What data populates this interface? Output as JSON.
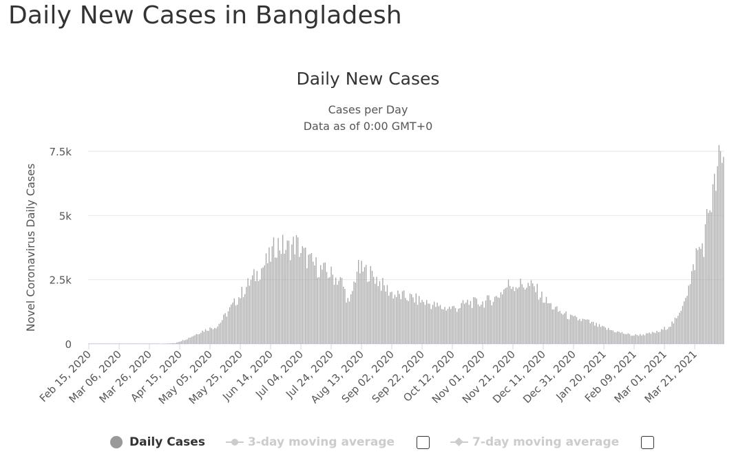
{
  "page": {
    "title": "Daily New Cases in Bangladesh"
  },
  "chart_data": {
    "type": "bar",
    "title": "Daily New Cases",
    "subtitle": "Cases per Day",
    "subtitle2": "Data as of 0:00 GMT+0",
    "ylabel": "Novel Coronavirus Daily Cases",
    "xlabel": "",
    "x_start": "2020-02-15",
    "x_end": "2021-04-09",
    "ylim": [
      0,
      7500
    ],
    "yticks": [
      {
        "value": 0,
        "label": "0"
      },
      {
        "value": 2500,
        "label": "2.5k"
      },
      {
        "value": 5000,
        "label": "5k"
      },
      {
        "value": 7500,
        "label": "7.5k"
      }
    ],
    "xticks": [
      {
        "date": "2020-02-15",
        "label": "Feb 15, 2020"
      },
      {
        "date": "2020-03-06",
        "label": "Mar 06, 2020"
      },
      {
        "date": "2020-03-26",
        "label": "Mar 26, 2020"
      },
      {
        "date": "2020-04-15",
        "label": "Apr 15, 2020"
      },
      {
        "date": "2020-05-05",
        "label": "May 05, 2020"
      },
      {
        "date": "2020-05-25",
        "label": "May 25, 2020"
      },
      {
        "date": "2020-06-14",
        "label": "Jun 14, 2020"
      },
      {
        "date": "2020-07-04",
        "label": "Jul 04, 2020"
      },
      {
        "date": "2020-07-24",
        "label": "Jul 24, 2020"
      },
      {
        "date": "2020-08-13",
        "label": "Aug 13, 2020"
      },
      {
        "date": "2020-09-02",
        "label": "Sep 02, 2020"
      },
      {
        "date": "2020-09-22",
        "label": "Sep 22, 2020"
      },
      {
        "date": "2020-10-12",
        "label": "Oct 12, 2020"
      },
      {
        "date": "2020-11-01",
        "label": "Nov 01, 2020"
      },
      {
        "date": "2020-11-21",
        "label": "Nov 21, 2020"
      },
      {
        "date": "2020-12-11",
        "label": "Dec 11, 2020"
      },
      {
        "date": "2020-12-31",
        "label": "Dec 31, 2020"
      },
      {
        "date": "2021-01-20",
        "label": "Jan 20, 2021"
      },
      {
        "date": "2021-02-09",
        "label": "Feb 09, 2021"
      },
      {
        "date": "2021-03-01",
        "label": "Mar 01, 2021"
      },
      {
        "date": "2021-03-21",
        "label": "Mar 21, 2021"
      }
    ],
    "grid": true,
    "legend_position": "bottom",
    "series": [
      {
        "name": "Daily Cases",
        "color": "#a8a8a8",
        "points": [
          {
            "date": "2020-02-15",
            "value": 0
          },
          {
            "date": "2020-04-01",
            "value": 0
          },
          {
            "date": "2020-04-12",
            "value": 30
          },
          {
            "date": "2020-04-20",
            "value": 200
          },
          {
            "date": "2020-04-30",
            "value": 500
          },
          {
            "date": "2020-05-10",
            "value": 700
          },
          {
            "date": "2020-05-20",
            "value": 1500
          },
          {
            "date": "2020-05-30",
            "value": 2300
          },
          {
            "date": "2020-06-06",
            "value": 2800
          },
          {
            "date": "2020-06-13",
            "value": 3300
          },
          {
            "date": "2020-06-18",
            "value": 3900
          },
          {
            "date": "2020-06-25",
            "value": 3700
          },
          {
            "date": "2020-07-01",
            "value": 3900
          },
          {
            "date": "2020-07-04",
            "value": 3600
          },
          {
            "date": "2020-07-10",
            "value": 3200
          },
          {
            "date": "2020-07-17",
            "value": 2900
          },
          {
            "date": "2020-07-24",
            "value": 2700
          },
          {
            "date": "2020-07-31",
            "value": 2400
          },
          {
            "date": "2020-08-05",
            "value": 1500
          },
          {
            "date": "2020-08-10",
            "value": 2900
          },
          {
            "date": "2020-08-17",
            "value": 2800
          },
          {
            "date": "2020-08-22",
            "value": 2600
          },
          {
            "date": "2020-08-28",
            "value": 2200
          },
          {
            "date": "2020-09-04",
            "value": 1900
          },
          {
            "date": "2020-09-14",
            "value": 1800
          },
          {
            "date": "2020-09-25",
            "value": 1600
          },
          {
            "date": "2020-10-05",
            "value": 1400
          },
          {
            "date": "2020-10-15",
            "value": 1400
          },
          {
            "date": "2020-10-22",
            "value": 1600
          },
          {
            "date": "2020-11-01",
            "value": 1600
          },
          {
            "date": "2020-11-10",
            "value": 1800
          },
          {
            "date": "2020-11-18",
            "value": 2300
          },
          {
            "date": "2020-11-28",
            "value": 2300
          },
          {
            "date": "2020-12-05",
            "value": 2200
          },
          {
            "date": "2020-12-12",
            "value": 1700
          },
          {
            "date": "2020-12-20",
            "value": 1300
          },
          {
            "date": "2020-12-30",
            "value": 1000
          },
          {
            "date": "2021-01-08",
            "value": 900
          },
          {
            "date": "2021-01-18",
            "value": 650
          },
          {
            "date": "2021-01-28",
            "value": 480
          },
          {
            "date": "2021-02-08",
            "value": 330
          },
          {
            "date": "2021-02-18",
            "value": 380
          },
          {
            "date": "2021-02-26",
            "value": 480
          },
          {
            "date": "2021-03-04",
            "value": 700
          },
          {
            "date": "2021-03-10",
            "value": 1000
          },
          {
            "date": "2021-03-14",
            "value": 1800
          },
          {
            "date": "2021-03-18",
            "value": 2300
          },
          {
            "date": "2021-03-22",
            "value": 3500
          },
          {
            "date": "2021-03-27",
            "value": 3900
          },
          {
            "date": "2021-03-30",
            "value": 5200
          },
          {
            "date": "2021-04-03",
            "value": 6000
          },
          {
            "date": "2021-04-06",
            "value": 7000
          },
          {
            "date": "2021-04-09",
            "value": 7000
          }
        ]
      }
    ]
  },
  "legend": {
    "items": [
      {
        "label": "Daily Cases",
        "active": true
      },
      {
        "label": "3-day moving average",
        "active": false
      },
      {
        "label": "7-day moving average",
        "active": false
      }
    ]
  }
}
